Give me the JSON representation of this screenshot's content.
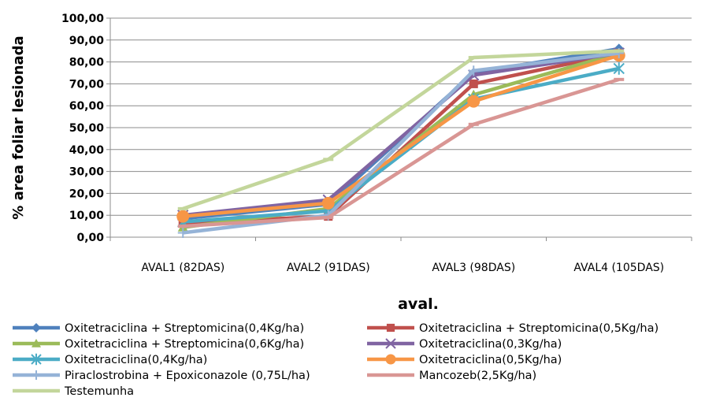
{
  "chart_data": {
    "type": "line",
    "xlabel": "aval.",
    "ylabel": "% area foliar lesionada",
    "ylim": [
      0,
      100
    ],
    "ytick_step": 10,
    "ytick_labels": [
      "0,00",
      "10,00",
      "20,00",
      "30,00",
      "40,00",
      "50,00",
      "60,00",
      "70,00",
      "80,00",
      "90,00",
      "100,00"
    ],
    "categories": [
      "AVAL1 (82DAS)",
      "AVAL2 (91DAS)",
      "AVAL3 (98DAS)",
      "AVAL4 (105DAS)"
    ],
    "grid": "horizontal",
    "legend_position": "bottom",
    "series": [
      {
        "name": "Oxitetraciclina + Streptomicina(0,4Kg/ha)",
        "values": [
          8.5,
          15.0,
          75.0,
          86.0
        ],
        "color": "#4f81bd",
        "marker": "diamond"
      },
      {
        "name": "Oxitetraciclina + Streptomicina(0,5Kg/ha)",
        "values": [
          6.5,
          9.5,
          70.0,
          84.0
        ],
        "color": "#c0504d",
        "marker": "square"
      },
      {
        "name": "Oxitetraciclina + Streptomicina(0,6Kg/ha)",
        "values": [
          4.5,
          13.0,
          65.0,
          84.0
        ],
        "color": "#9bbb59",
        "marker": "triangle"
      },
      {
        "name": "Oxitetraciclina(0,3Kg/ha)",
        "values": [
          10.0,
          17.0,
          74.0,
          84.0
        ],
        "color": "#8064a2",
        "marker": "x"
      },
      {
        "name": "Oxitetraciclina(0,4Kg/ha)",
        "values": [
          7.0,
          12.0,
          63.0,
          77.0
        ],
        "color": "#4bacc6",
        "marker": "star"
      },
      {
        "name": "Oxitetraciclina(0,5Kg/ha)",
        "values": [
          9.5,
          15.5,
          62.0,
          83.0
        ],
        "color": "#f79646",
        "marker": "circle"
      },
      {
        "name": "Piraclostrobina + Epoxiconazole (0,75L/ha)",
        "values": [
          2.0,
          10.0,
          76.0,
          84.0
        ],
        "color": "#95b3d7",
        "marker": "plus"
      },
      {
        "name": "Mancozeb(2,5Kg/ha)",
        "values": [
          5.0,
          9.0,
          51.5,
          72.0
        ],
        "color": "#d99694",
        "marker": "dash"
      },
      {
        "name": "Testemunha",
        "values": [
          13.0,
          35.5,
          82.0,
          85.0
        ],
        "color": "#c3d69b",
        "marker": "dash"
      }
    ]
  }
}
